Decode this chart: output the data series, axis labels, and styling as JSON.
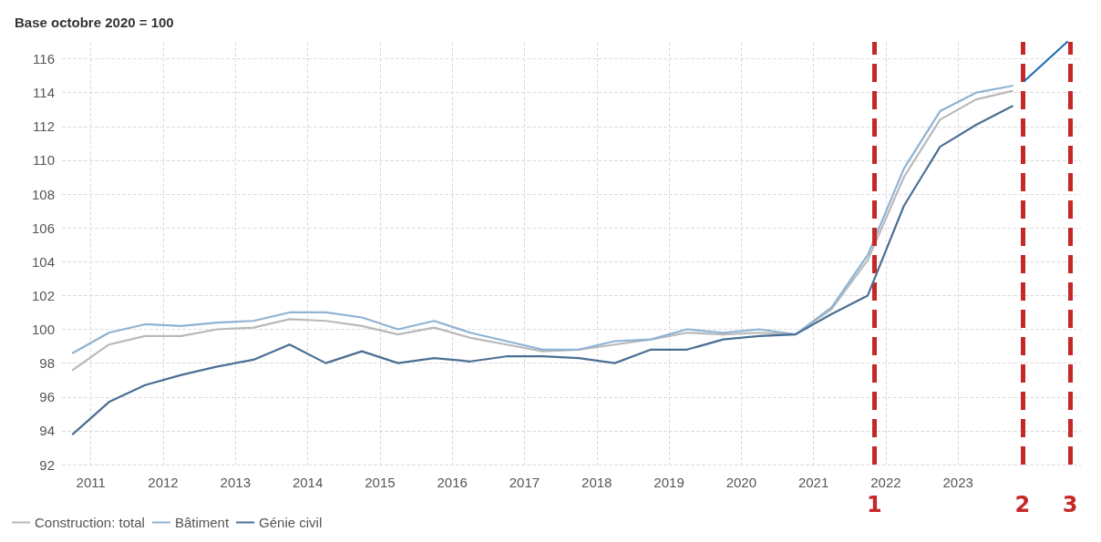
{
  "chart_data": {
    "type": "line",
    "ylabel": "Base octobre 2020 = 100",
    "x": [
      2010.75,
      2011.25,
      2011.75,
      2012.25,
      2012.75,
      2013.25,
      2013.75,
      2014.25,
      2014.75,
      2015.25,
      2015.75,
      2016.25,
      2016.75,
      2017.25,
      2017.75,
      2018.25,
      2018.75,
      2019.25,
      2019.75,
      2020.25,
      2020.75,
      2021.25,
      2021.75,
      2022.25,
      2022.75,
      2023.25,
      2023.75
    ],
    "series": [
      {
        "name": "Construction: total",
        "color": "#b9b9b9",
        "values": [
          97.6,
          99.1,
          99.6,
          99.6,
          100.0,
          100.1,
          100.6,
          100.5,
          100.2,
          99.7,
          100.1,
          99.5,
          99.1,
          98.7,
          98.8,
          99.1,
          99.4,
          99.8,
          99.7,
          99.8,
          99.7,
          101.2,
          104.1,
          109.0,
          112.4,
          113.6,
          114.1
        ]
      },
      {
        "name": "Bâtiment",
        "color": "#8fb3d3",
        "values": [
          98.6,
          99.8,
          100.3,
          100.2,
          100.4,
          100.5,
          101.0,
          101.0,
          100.7,
          100.0,
          100.5,
          99.8,
          99.3,
          98.8,
          98.8,
          99.3,
          99.4,
          100.0,
          99.8,
          100.0,
          99.7,
          101.3,
          104.4,
          109.5,
          112.9,
          114.0,
          114.4
        ]
      },
      {
        "name": "Génie civil",
        "color": "#4a6f94",
        "values": [
          93.8,
          95.7,
          96.7,
          97.3,
          97.8,
          98.2,
          99.1,
          98.0,
          98.7,
          98.0,
          98.3,
          98.1,
          98.4,
          98.4,
          98.3,
          98.0,
          98.8,
          98.8,
          99.4,
          99.6,
          99.7,
          100.9,
          102.0,
          107.3,
          110.8,
          112.1,
          113.2
        ]
      },
      {
        "color": "#1f6fb5",
        "x": [
          2023.92,
          2024.51
        ],
        "values": [
          114.7,
          117.0
        ]
      }
    ],
    "xlim": [
      2010.6,
      2024.7
    ],
    "xticks": [
      2011,
      2012,
      2013,
      2014,
      2015,
      2016,
      2017,
      2018,
      2019,
      2020,
      2021,
      2022,
      2023
    ],
    "ylim": [
      92,
      117
    ],
    "yticks": [
      92,
      94,
      96,
      98,
      100,
      102,
      104,
      106,
      108,
      110,
      112,
      114,
      116
    ],
    "ref_lines": [
      {
        "axis": "x",
        "value": 2021.84,
        "color": "#c62828",
        "line_style": "dashed"
      },
      {
        "axis": "x",
        "value": 2023.89,
        "color": "#c62828",
        "line_style": "dashed"
      },
      {
        "axis": "x",
        "value": 2024.55,
        "color": "#c62828",
        "line_style": "dashed"
      }
    ],
    "annotations": [
      "1",
      "2",
      "3"
    ],
    "grid": true,
    "legend": "bottom left",
    "marker": "none",
    "line_style": "solid"
  }
}
